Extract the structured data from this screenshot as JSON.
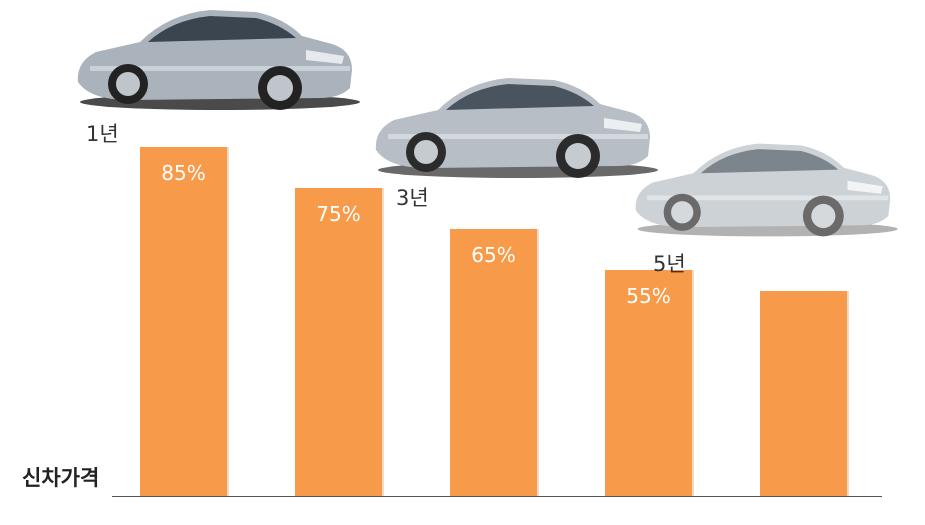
{
  "chart_data": {
    "type": "bar",
    "categories": [
      "",
      "",
      "",
      "",
      ""
    ],
    "values": [
      85,
      75,
      65,
      55,
      50
    ],
    "data_labels": [
      "85%",
      "75%",
      "65%",
      "55%",
      ""
    ],
    "year_labels": [
      "1년",
      "3년",
      "5년"
    ],
    "ylabel": "신차가격",
    "ylim": [
      0,
      100
    ],
    "grid": false,
    "bar_color": "#f79a4a"
  },
  "images": [
    {
      "icon": "silver-sedan-car-icon"
    },
    {
      "icon": "silver-sedan-car-icon"
    },
    {
      "icon": "silver-sedan-car-icon"
    }
  ]
}
